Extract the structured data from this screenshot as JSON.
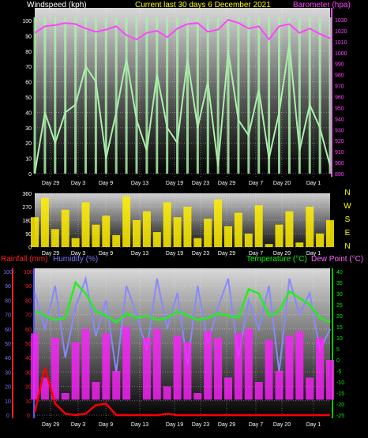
{
  "chart_data": [
    {
      "type": "line",
      "id": "wind_baro",
      "title": "Current last 30 days 6 December 2021",
      "ylabel_left": "Windspeed (kph)",
      "ylabel_right": "Barometer (hpa)",
      "ylim_left": [
        0,
        100
      ],
      "ylim_right": [
        890,
        1035
      ],
      "yticks_left": [
        0,
        10,
        20,
        30,
        40,
        50,
        60,
        70,
        80,
        90,
        100
      ],
      "yticks_right": [
        890,
        900,
        910,
        920,
        930,
        940,
        950,
        960,
        970,
        980,
        990,
        1000,
        1010,
        1020,
        1030
      ],
      "x_labels": [
        "Day 29",
        "Day 3",
        "Day 9",
        "Day 13",
        "Day 19",
        "Day 23",
        "Day 29",
        "Day 7",
        "Day 20",
        "Day 1"
      ],
      "grid": true,
      "series": [
        {
          "name": "Windspeed",
          "color": "#aaf0aa",
          "values": [
            0,
            40,
            20,
            40,
            45,
            70,
            60,
            10,
            40,
            75,
            35,
            15,
            65,
            30,
            20,
            75,
            30,
            60,
            5,
            80,
            35,
            25,
            55,
            10,
            40,
            85,
            15,
            45,
            30,
            5
          ]
        },
        {
          "name": "Barometer",
          "color": "#ff44ff",
          "values": [
            1018,
            1024,
            1025,
            1027,
            1026,
            1022,
            1019,
            1021,
            1024,
            1016,
            1012,
            1018,
            1020,
            1014,
            1022,
            1026,
            1027,
            1019,
            1021,
            1030,
            1027,
            1022,
            1024,
            1012,
            1024,
            1026,
            1018,
            1022,
            1017,
            1013
          ]
        }
      ]
    },
    {
      "type": "line",
      "id": "winddir",
      "ylim": [
        0,
        360
      ],
      "yticks": [
        0,
        90,
        180,
        270,
        360
      ],
      "compass": [
        "N",
        "W",
        "S",
        "E",
        "N"
      ],
      "x_labels": [
        "Day 29",
        "Day 3",
        "Day 9",
        "Day 13",
        "Day 19",
        "Day 23",
        "Day 29",
        "Day 7",
        "Day 20",
        "Day 1"
      ],
      "series": [
        {
          "name": "Wind direction",
          "color": "#ffee00",
          "values": [
            200,
            330,
            120,
            250,
            60,
            300,
            150,
            210,
            80,
            340,
            180,
            240,
            100,
            300,
            200,
            270,
            60,
            190,
            320,
            140,
            230,
            90,
            280,
            20,
            150,
            240,
            30,
            270,
            90,
            180
          ]
        }
      ]
    },
    {
      "type": "line",
      "id": "rain_hum_temp",
      "ylabel_left1": "Rainfall (mm)",
      "ylabel_left2": "Humidity (%)",
      "ylabel_right1": "Temperature (°C)",
      "ylabel_right2": "Dew Point (°C)",
      "ylim_left": [
        0,
        100
      ],
      "ylim_right": [
        -25,
        40
      ],
      "yticks_rain": [
        0,
        10,
        20,
        30,
        40,
        50,
        60,
        70,
        80,
        90,
        100
      ],
      "yticks_humidity": [
        0,
        10,
        20,
        30,
        40,
        50,
        60,
        70,
        80,
        90,
        100
      ],
      "yticks_temp": [
        -25,
        -20,
        -15,
        -10,
        -5,
        0,
        5,
        10,
        15,
        20,
        25,
        30,
        35,
        40
      ],
      "x_labels": [
        "Day 29",
        "Day 3",
        "Day 9",
        "Day 13",
        "Day 19",
        "Day 23",
        "Day 29",
        "Day 7",
        "Day 20",
        "Day 1"
      ],
      "series": [
        {
          "name": "Humidity",
          "color": "#8888ff",
          "values": [
            85,
            60,
            90,
            40,
            75,
            95,
            55,
            80,
            30,
            90,
            70,
            45,
            95,
            60,
            85,
            35,
            90,
            50,
            75,
            95,
            40,
            80,
            60,
            90,
            30,
            95,
            70,
            85,
            45,
            60
          ]
        },
        {
          "name": "Dew Point",
          "color": "#ff22ff",
          "values": [
            12,
            -8,
            10,
            -15,
            8,
            14,
            -10,
            12,
            -5,
            15,
            -18,
            10,
            14,
            -12,
            11,
            8,
            -15,
            13,
            10,
            -8,
            12,
            14,
            -10,
            9,
            -5,
            11,
            13,
            -8,
            10,
            0
          ]
        },
        {
          "name": "Temperature",
          "color": "#22ee22",
          "values": [
            22,
            20,
            18,
            19,
            35,
            30,
            22,
            20,
            17,
            21,
            19,
            20,
            18,
            19,
            22,
            20,
            18,
            19,
            21,
            20,
            19,
            32,
            30,
            20,
            22,
            31,
            28,
            25,
            19,
            17
          ]
        },
        {
          "name": "Rainfall",
          "color": "#ff0000",
          "values": [
            2,
            33,
            8,
            1,
            0,
            1,
            7,
            8,
            0,
            0,
            0,
            0,
            0,
            1,
            0,
            0,
            0,
            0,
            0,
            0,
            0,
            0,
            0,
            0,
            0,
            0,
            0,
            0,
            0,
            0
          ]
        }
      ]
    }
  ]
}
